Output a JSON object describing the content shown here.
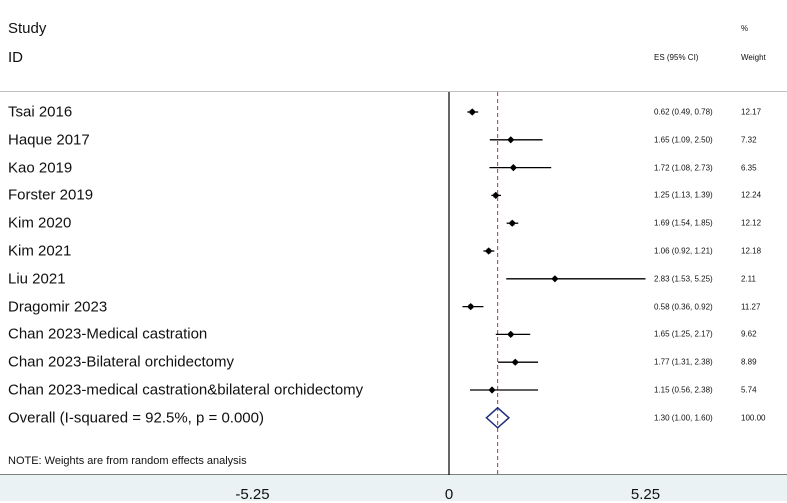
{
  "header": {
    "study": "Study",
    "id": "ID",
    "es_ci": "ES (95% CI)",
    "percent": "%",
    "weight": "Weight"
  },
  "note": "NOTE: Weights are from random effects analysis",
  "chart_data": {
    "type": "forest",
    "xlim": [
      -10,
      10
    ],
    "null_line": 0,
    "overall_line": 1.3,
    "ticks": [
      {
        "value": -5.25,
        "label": "-5.25"
      },
      {
        "value": 0,
        "label": "0"
      },
      {
        "value": 5.25,
        "label": "5.25"
      }
    ],
    "studies": [
      {
        "label": "Tsai 2016",
        "es": 0.62,
        "lo": 0.49,
        "hi": 0.78,
        "es_text": "0.62 (0.49, 0.78)",
        "weight": "12.17"
      },
      {
        "label": "Haque 2017",
        "es": 1.65,
        "lo": 1.09,
        "hi": 2.5,
        "es_text": "1.65 (1.09, 2.50)",
        "weight": "7.32"
      },
      {
        "label": "Kao 2019",
        "es": 1.72,
        "lo": 1.08,
        "hi": 2.73,
        "es_text": "1.72 (1.08, 2.73)",
        "weight": "6.35"
      },
      {
        "label": "Forster 2019",
        "es": 1.25,
        "lo": 1.13,
        "hi": 1.39,
        "es_text": "1.25 (1.13, 1.39)",
        "weight": "12.24"
      },
      {
        "label": "Kim 2020",
        "es": 1.69,
        "lo": 1.54,
        "hi": 1.85,
        "es_text": "1.69 (1.54, 1.85)",
        "weight": "12.12"
      },
      {
        "label": "Kim 2021",
        "es": 1.06,
        "lo": 0.92,
        "hi": 1.21,
        "es_text": "1.06 (0.92, 1.21)",
        "weight": "12.18"
      },
      {
        "label": "Liu 2021",
        "es": 2.83,
        "lo": 1.53,
        "hi": 5.25,
        "es_text": "2.83 (1.53, 5.25)",
        "weight": "2.11"
      },
      {
        "label": "Dragomir 2023",
        "es": 0.58,
        "lo": 0.36,
        "hi": 0.92,
        "es_text": "0.58 (0.36, 0.92)",
        "weight": "11.27"
      },
      {
        "label": "Chan 2023-Medical castration",
        "es": 1.65,
        "lo": 1.25,
        "hi": 2.17,
        "es_text": "1.65 (1.25, 2.17)",
        "weight": "9.62"
      },
      {
        "label": "Chan 2023-Bilateral orchidectomy",
        "es": 1.77,
        "lo": 1.31,
        "hi": 2.38,
        "es_text": "1.77 (1.31, 2.38)",
        "weight": "8.89"
      },
      {
        "label": "Chan 2023-medical castration&bilateral orchidectomy",
        "es": 1.15,
        "lo": 0.56,
        "hi": 2.38,
        "es_text": "1.15 (0.56, 2.38)",
        "weight": "5.74"
      }
    ],
    "overall": {
      "label": "Overall  (I-squared = 92.5%, p = 0.000)",
      "es": 1.3,
      "lo": 1.0,
      "hi": 1.6,
      "es_text": "1.30 (1.00, 1.60)",
      "weight": "100.00"
    },
    "colors": {
      "marker": "#000000",
      "ci_line": "#000000",
      "overall_line": "#b0343a",
      "diamond": "#1f2d7a",
      "axis_band": "#eaf2f3"
    }
  }
}
